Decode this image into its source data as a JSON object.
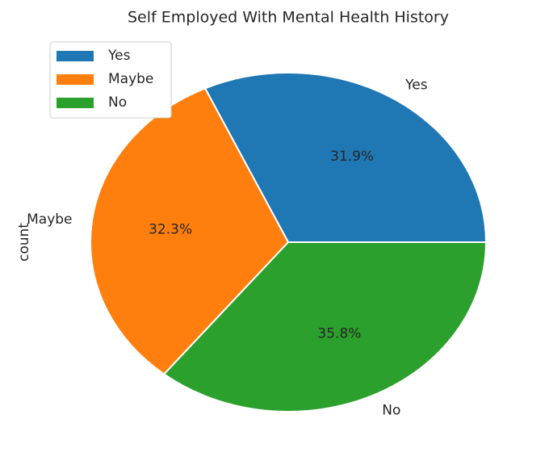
{
  "chart_data": {
    "type": "pie",
    "title": "Self Employed With Mental Health History",
    "ylabel": "count",
    "categories": [
      "Yes",
      "Maybe",
      "No"
    ],
    "values": [
      31.9,
      32.3,
      35.8
    ],
    "value_labels": [
      "31.9%",
      "32.3%",
      "35.8%"
    ],
    "colors": [
      "#1f77b4",
      "#ff7f0e",
      "#2ca02c"
    ],
    "legend": "upper left"
  }
}
